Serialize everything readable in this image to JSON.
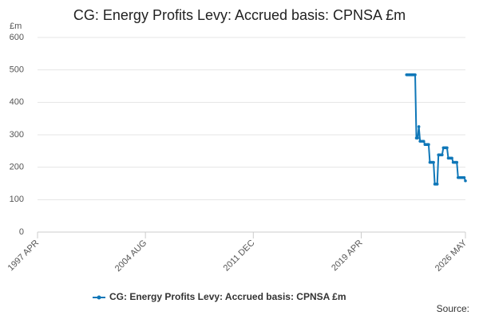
{
  "chart_data": {
    "type": "line",
    "title": "CG: Energy Profits Levy: Accrued basis: CPNSA £m",
    "y_unit": "£m",
    "source": "Source:",
    "x": [
      "2022 MAY",
      "2022 JUN",
      "2022 JUL",
      "2022 AUG",
      "2022 SEP",
      "2022 OCT",
      "2022 NOV",
      "2022 DEC",
      "2023 JAN",
      "2023 FEB",
      "2023 MAR",
      "2023 APR",
      "2023 MAY",
      "2023 JUN",
      "2023 JUL",
      "2023 AUG",
      "2023 SEP",
      "2023 OCT",
      "2023 NOV",
      "2023 DEC",
      "2024 JAN",
      "2024 FEB",
      "2024 MAR",
      "2024 APR",
      "2024 MAY",
      "2024 JUN",
      "2024 JUL",
      "2024 AUG",
      "2024 SEP",
      "2024 OCT",
      "2024 NOV",
      "2024 DEC",
      "2025 JAN",
      "2025 FEB",
      "2025 MAR",
      "2025 APR",
      "2025 MAY",
      "2025 JUN",
      "2025 JUL",
      "2025 AUG",
      "2025 SEP",
      "2025 OCT",
      "2025 NOV",
      "2025 DEC",
      "2026 JAN",
      "2026 FEB",
      "2026 MAR",
      "2026 APR",
      "2026 MAY"
    ],
    "series": [
      {
        "name": "CG: Energy Profits Levy: Accrued basis: CPNSA £m",
        "color": "#0f77b8",
        "values": [
          485,
          485,
          485,
          485,
          485,
          485,
          485,
          485,
          290,
          290,
          325,
          280,
          280,
          280,
          280,
          270,
          270,
          270,
          270,
          215,
          215,
          215,
          215,
          148,
          148,
          148,
          238,
          238,
          238,
          238,
          260,
          260,
          260,
          260,
          228,
          228,
          228,
          228,
          215,
          215,
          215,
          215,
          168,
          168,
          168,
          168,
          168,
          168,
          158
        ]
      }
    ],
    "xlim": [
      "1997 APR",
      "2026 MAY"
    ],
    "xticks": [
      "1997 APR",
      "2004 AUG",
      "2011 DEC",
      "2019 APR",
      "2026 MAY"
    ],
    "ylim": [
      0,
      600
    ],
    "yticks": [
      0,
      100,
      200,
      300,
      400,
      500,
      600
    ],
    "grid": true
  }
}
